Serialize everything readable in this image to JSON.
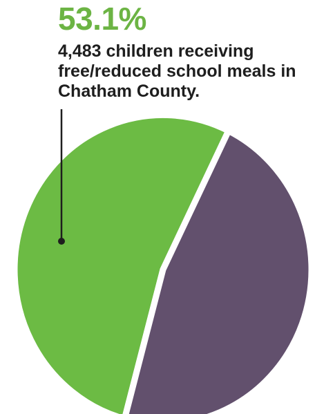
{
  "chart_data": {
    "type": "pie",
    "title": "53.1%",
    "annotation": "4,483 children receiving free/reduced school meals in Chatham County.",
    "slices": [
      {
        "value": 53.1,
        "color": "#6cbb44"
      },
      {
        "value": 46.9,
        "color": "#62506d"
      }
    ]
  }
}
